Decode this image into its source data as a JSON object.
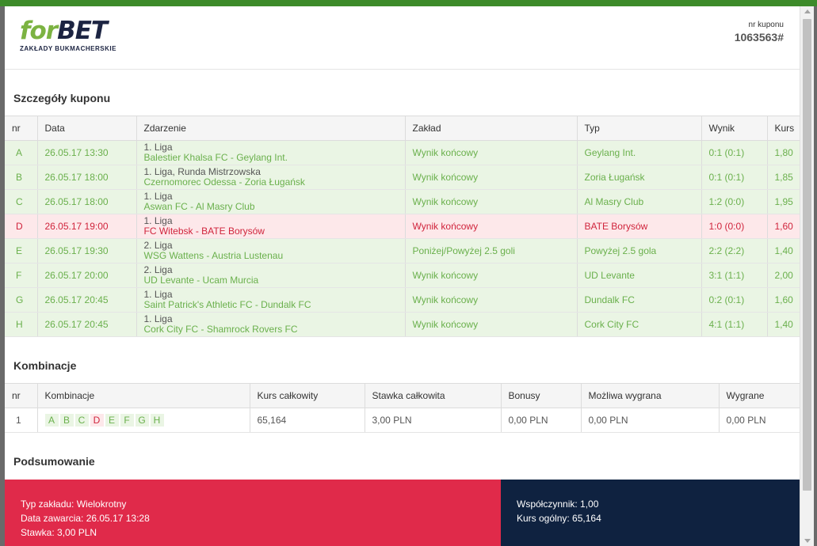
{
  "brand": {
    "logo_for": "for",
    "logo_bet": "BET",
    "logo_sub": "ZAKŁADY BUKMACHERSKIE"
  },
  "coupon": {
    "label": "nr kuponu",
    "number": "1063563#"
  },
  "details": {
    "title": "Szczegóły kuponu",
    "columns": [
      "nr",
      "Data",
      "Zdarzenie",
      "Zakład",
      "Typ",
      "Wynik",
      "Kurs"
    ],
    "rows": [
      {
        "nr": "A",
        "date": "26.05.17 13:30",
        "league": "1. Liga",
        "event": "Balestier Khalsa FC - Geylang Int.",
        "bet": "Wynik końcowy",
        "type": "Geylang Int.",
        "result": "0:1 (0:1)",
        "odds": "1,80",
        "status": "won"
      },
      {
        "nr": "B",
        "date": "26.05.17 18:00",
        "league": "1. Liga, Runda Mistrzowska",
        "event": "Czernomorec Odessa - Zoria Ługańsk",
        "bet": "Wynik końcowy",
        "type": "Zoria Ługańsk",
        "result": "0:1 (0:1)",
        "odds": "1,85",
        "status": "won"
      },
      {
        "nr": "C",
        "date": "26.05.17 18:00",
        "league": "1. Liga",
        "event": "Aswan FC - Al Masry Club",
        "bet": "Wynik końcowy",
        "type": "Al Masry Club",
        "result": "1:2 (0:0)",
        "odds": "1,95",
        "status": "won"
      },
      {
        "nr": "D",
        "date": "26.05.17 19:00",
        "league": "1. Liga",
        "event": "FC Witebsk - BATE Borysów",
        "bet": "Wynik końcowy",
        "type": "BATE Borysów",
        "result": "1:0 (0:0)",
        "odds": "1,60",
        "status": "lost"
      },
      {
        "nr": "E",
        "date": "26.05.17 19:30",
        "league": "2. Liga",
        "event": "WSG Wattens - Austria Lustenau",
        "bet": "Poniżej/Powyżej 2.5 goli",
        "type": "Powyżej 2.5 gola",
        "result": "2:2 (2:2)",
        "odds": "1,40",
        "status": "won"
      },
      {
        "nr": "F",
        "date": "26.05.17 20:00",
        "league": "2. Liga",
        "event": "UD Levante - Ucam Murcia",
        "bet": "Wynik końcowy",
        "type": "UD Levante",
        "result": "3:1 (1:1)",
        "odds": "2,00",
        "status": "won"
      },
      {
        "nr": "G",
        "date": "26.05.17 20:45",
        "league": "1. Liga",
        "event": "Saint Patrick's Athletic FC - Dundalk FC",
        "bet": "Wynik końcowy",
        "type": "Dundalk FC",
        "result": "0:2 (0:1)",
        "odds": "1,60",
        "status": "won"
      },
      {
        "nr": "H",
        "date": "26.05.17 20:45",
        "league": "1. Liga",
        "event": "Cork City FC - Shamrock Rovers FC",
        "bet": "Wynik końcowy",
        "type": "Cork City FC",
        "result": "4:1 (1:1)",
        "odds": "1,40",
        "status": "won"
      }
    ]
  },
  "combinations": {
    "title": "Kombinacje",
    "columns": [
      "nr",
      "Kombinacje",
      "Kurs całkowity",
      "Stawka całkowita",
      "Bonusy",
      "Możliwa wygrana",
      "Wygrane"
    ],
    "rows": [
      {
        "nr": "1",
        "letters": [
          {
            "l": "A",
            "status": "won"
          },
          {
            "l": "B",
            "status": "won"
          },
          {
            "l": "C",
            "status": "won"
          },
          {
            "l": "D",
            "status": "lost"
          },
          {
            "l": "E",
            "status": "won"
          },
          {
            "l": "F",
            "status": "won"
          },
          {
            "l": "G",
            "status": "won"
          },
          {
            "l": "H",
            "status": "won"
          }
        ],
        "total_odds": "65,164",
        "total_stake": "3,00 PLN",
        "bonus": "0,00 PLN",
        "possible_win": "0,00 PLN",
        "won": "0,00 PLN"
      }
    ]
  },
  "summary": {
    "title": "Podsumowanie",
    "bet_type": "Typ zakładu: Wielokrotny",
    "date": "Data zawarcia: 26.05.17 13:28",
    "stake": "Stawka: 3,00 PLN",
    "coefficient": "Współczynnik: 1,00",
    "total_odds": "Kurs ogólny: 65,164"
  },
  "colors": {
    "won": "#6ab04c",
    "lost": "#d0243c",
    "summary_left": "#e02a4a",
    "summary_right": "#0f2240"
  }
}
